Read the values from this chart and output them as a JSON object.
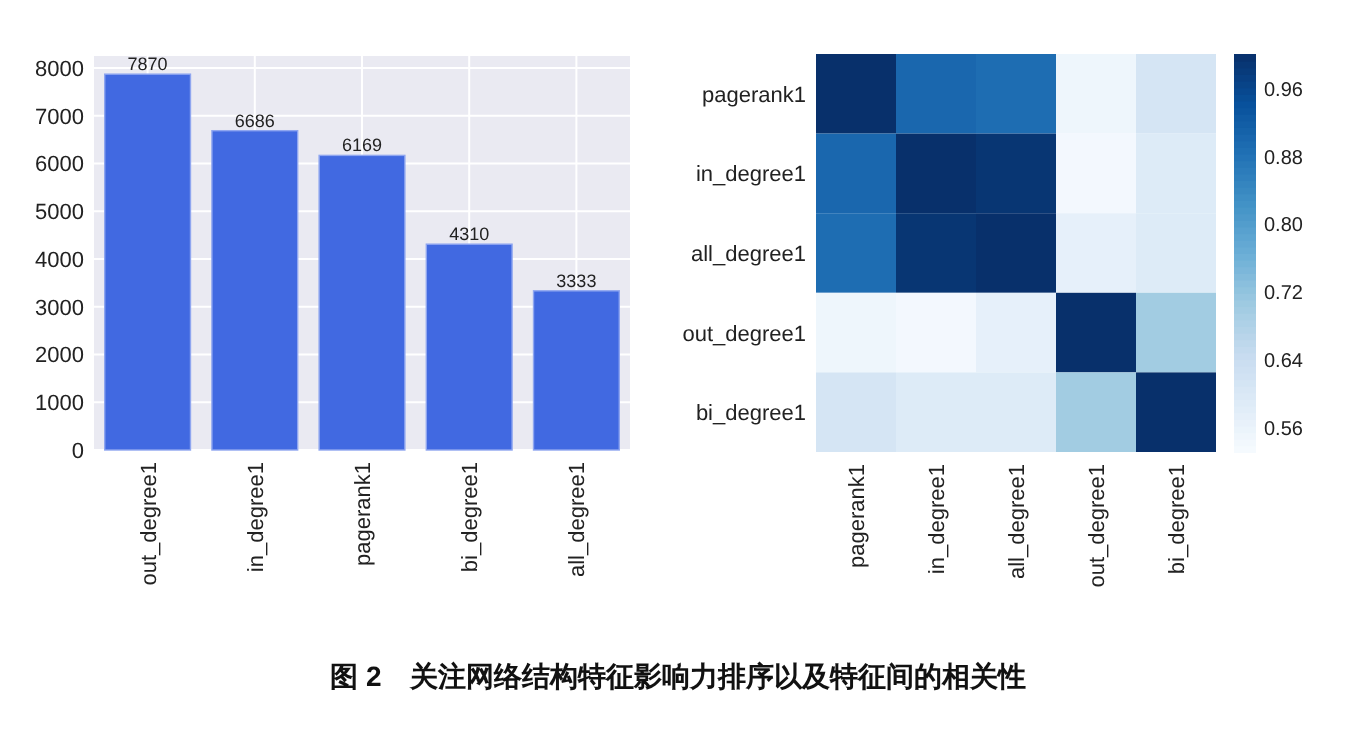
{
  "chart_data": [
    {
      "type": "bar",
      "categories": [
        "out_degree1",
        "in_degree1",
        "pagerank1",
        "bi_degree1",
        "all_degree1"
      ],
      "values": [
        7870,
        6686,
        6169,
        4310,
        3333
      ],
      "color": "#4169e1",
      "ylim": [
        0,
        8250
      ],
      "yticks": [
        0,
        1000,
        2000,
        3000,
        4000,
        5000,
        6000,
        7000,
        8000
      ],
      "grid": true,
      "data_labels": true,
      "annotations": [
        "图 2　关注网络结构特征影响力排序以及特征间的相关性"
      ]
    },
    {
      "type": "heatmap",
      "categories": [
        "pagerank1",
        "in_degree1",
        "all_degree1",
        "out_degree1",
        "bi_degree1"
      ],
      "y_categories": [
        "pagerank1",
        "in_degree1",
        "all_degree1",
        "out_degree1",
        "bi_degree1"
      ],
      "cells": [
        [
          1.0,
          0.9,
          0.89,
          0.55,
          0.61
        ],
        [
          0.9,
          1.0,
          0.99,
          0.54,
          0.59
        ],
        [
          0.89,
          0.99,
          1.0,
          0.57,
          0.59
        ],
        [
          0.55,
          0.54,
          0.57,
          1.0,
          0.7
        ],
        [
          0.61,
          0.59,
          0.59,
          0.7,
          1.0
        ]
      ],
      "clim": [
        0.53,
        1.0
      ],
      "cticks": [
        0.56,
        0.64,
        0.72,
        {
          "value": 0.8,
          "label": "0.80"
        },
        0.88,
        0.96
      ]
    }
  ]
}
